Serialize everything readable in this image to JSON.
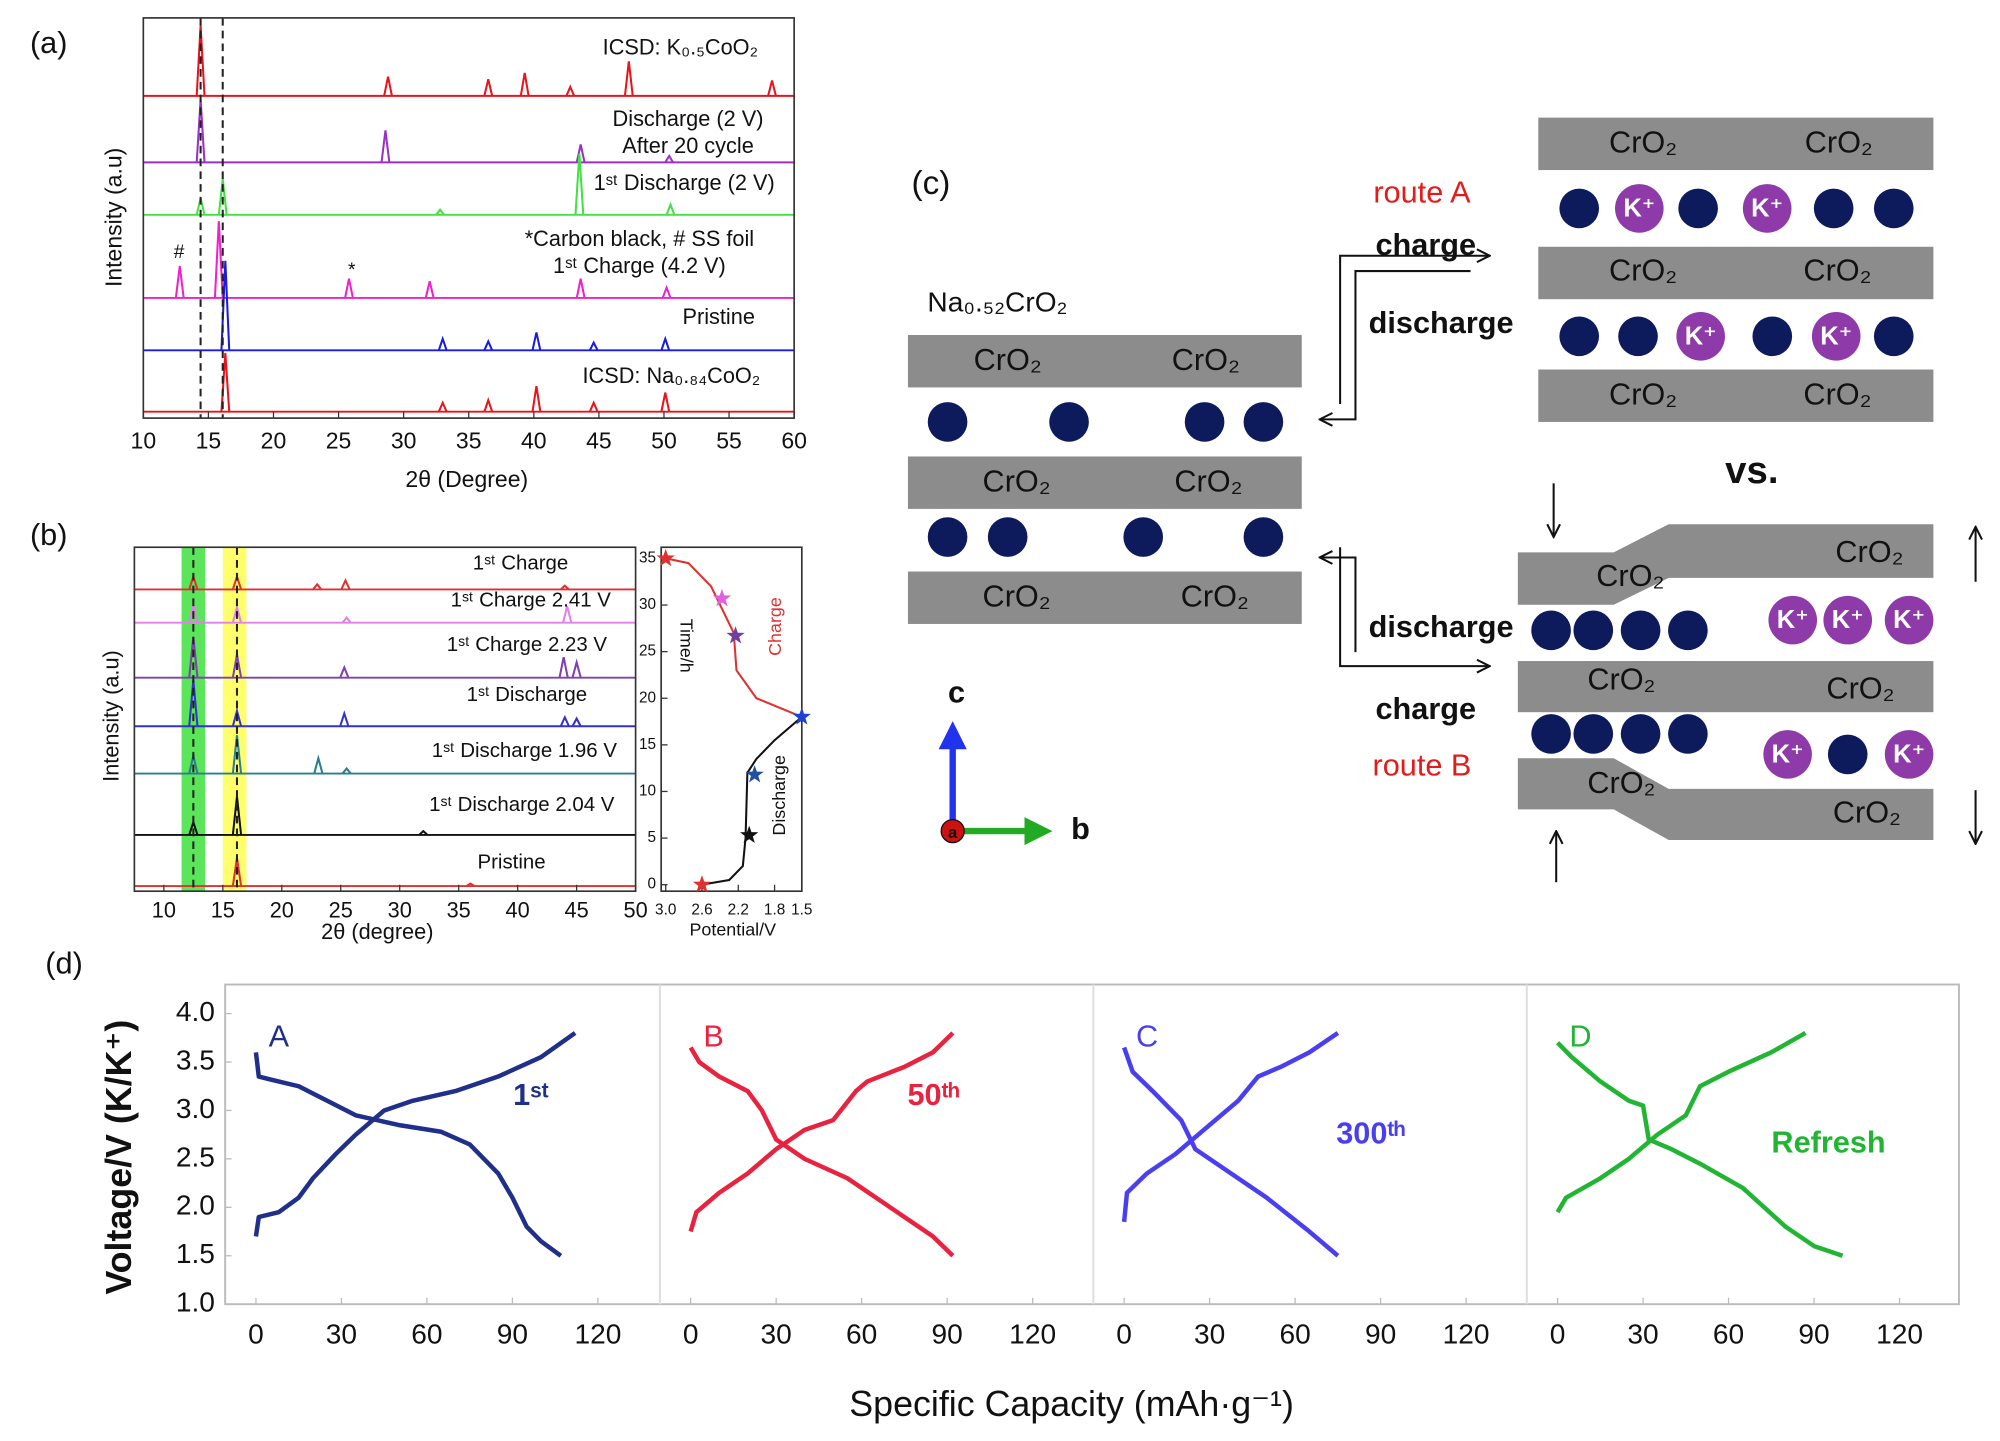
{
  "chart_data": [
    {
      "type": "line",
      "label": "(a)",
      "xlabel": "2θ (Degree)",
      "ylabel": "Intensity (a.u)",
      "xlim": [
        10,
        60
      ],
      "xticks": [
        10,
        15,
        20,
        25,
        30,
        35,
        40,
        45,
        50,
        55,
        60
      ],
      "ref_lines": [
        14.4,
        16.1
      ],
      "annotations": [
        "*Carbon black, # SS foil",
        "#",
        "*"
      ],
      "series": [
        {
          "name": "ICSD: K₀.₅CoO₂",
          "color": "#e8141c",
          "x": [
            14.4,
            28.8,
            36.5,
            39.3,
            42.8,
            47.3,
            58.3
          ],
          "values": [
            55,
            15,
            13,
            18,
            7,
            27,
            12
          ]
        },
        {
          "name": "Discharge (2 V)",
          "note": "After 20 cycle",
          "color": "#9b30c8",
          "x": [
            14.4,
            28.6,
            43.6,
            50.4
          ],
          "values": [
            49,
            25,
            14,
            5
          ]
        },
        {
          "name": "1ˢᵗ Discharge (2 V)",
          "color": "#44e044",
          "x": [
            14.4,
            16.1,
            32.8,
            43.5,
            50.5
          ],
          "values": [
            13,
            28,
            4,
            48,
            8
          ]
        },
        {
          "name": "1ˢᵗ Charge (4.2 V)",
          "color": "#ee22cc",
          "x": [
            12.8,
            15.8,
            25.8,
            32.0,
            43.6,
            50.2
          ],
          "values": [
            25,
            60,
            15,
            13,
            15,
            8
          ]
        },
        {
          "name": "Pristine",
          "color": "#1a1ae0",
          "x": [
            16.3,
            33.0,
            36.5,
            40.2,
            44.6,
            50.1
          ],
          "values": [
            70,
            9,
            7,
            14,
            6,
            9
          ]
        },
        {
          "name": "ICSD: Na₀.₈₄CoO₂",
          "color": "#e8141c",
          "x": [
            16.3,
            33.0,
            36.5,
            40.2,
            44.6,
            50.1
          ],
          "values": [
            46,
            7,
            9,
            20,
            7,
            15
          ]
        }
      ]
    },
    {
      "type": "line",
      "label": "(b)",
      "xlabel": "2θ (degree)",
      "ylabel": "Intensity (a.u)",
      "xlim": [
        7.5,
        50
      ],
      "xticks": [
        10,
        15,
        20,
        25,
        30,
        35,
        40,
        45,
        50
      ],
      "ref_lines": [
        12.5,
        16.2
      ],
      "bands": [
        {
          "range": [
            11.5,
            13.5
          ],
          "color": "#3ee03e"
        },
        {
          "range": [
            15,
            17
          ],
          "color": "#ffff55"
        }
      ],
      "series": [
        {
          "name": "1ˢᵗ Charge",
          "color": "#e03030",
          "x": [
            12.5,
            16.2,
            23.0,
            25.4,
            44
          ],
          "values": [
            10,
            10,
            4,
            7,
            3
          ]
        },
        {
          "name": "1ˢᵗ Charge 2.41 V",
          "color": "#e080e8",
          "x": [
            12.5,
            16.2,
            25.5,
            44.2
          ],
          "values": [
            14,
            12,
            4,
            13
          ]
        },
        {
          "name": "1ˢᵗ Charge 2.23 V",
          "color": "#8040b0",
          "x": [
            12.5,
            16.2,
            25.3,
            43.9,
            45
          ],
          "values": [
            32,
            18,
            8,
            16,
            12
          ]
        },
        {
          "name": "1ˢᵗ Discharge",
          "color": "#3333cc",
          "x": [
            12.5,
            16.2,
            25.3,
            44,
            45
          ],
          "values": [
            36,
            12,
            10,
            7,
            6
          ]
        },
        {
          "name": "1ˢᵗ Discharge 1.96 V",
          "color": "#2a7f8f",
          "x": [
            12.5,
            16.2,
            23.1,
            25.5
          ],
          "values": [
            14,
            30,
            12,
            4
          ]
        },
        {
          "name": "1ˢᵗ Discharge 2.04 V",
          "color": "#111111",
          "x": [
            12.5,
            16.2,
            32
          ],
          "values": [
            10,
            30,
            3
          ]
        },
        {
          "name": "Pristine",
          "color": "#e03030",
          "x": [
            16.2,
            36
          ],
          "values": [
            22,
            2
          ]
        }
      ]
    },
    {
      "type": "line",
      "xlabel": "Potential/V",
      "ylabel": "Time/h",
      "xlim": [
        3.05,
        1.5
      ],
      "xticks": [
        {
          "value": 3,
          "label": "3.0"
        },
        2.6,
        2.2,
        1.8,
        1.5
      ],
      "ylim": [
        -0.7,
        36.2
      ],
      "yticks": [
        0,
        5,
        10,
        15,
        20,
        25,
        30,
        35
      ],
      "series": [
        {
          "name": "Charge",
          "color": "#e03030",
          "x": [
            3.0,
            2.75,
            2.5,
            2.35,
            2.25,
            2.22,
            2.0,
            1.75,
            1.5
          ],
          "values": [
            35,
            34.5,
            32,
            29,
            27,
            23,
            20,
            19,
            18
          ]
        },
        {
          "name": "Discharge",
          "color": "#111111",
          "x": [
            2.6,
            2.3,
            2.15,
            2.12,
            2.1,
            2.0,
            1.8,
            1.5
          ],
          "values": [
            0,
            0.5,
            2,
            5,
            12,
            13.5,
            15.5,
            18
          ]
        }
      ],
      "markers": {
        "x": [
          3.0,
          2.38,
          2.23,
          1.5,
          2.02,
          2.08,
          2.6
        ],
        "values": [
          35,
          30.7,
          26.7,
          18,
          11.8,
          5.3,
          0
        ],
        "colors": [
          "#e03030",
          "#e060e0",
          "#7040a0",
          "#2040d0",
          "#2050a0",
          "#111111",
          "#e03030"
        ]
      }
    },
    {
      "type": "line",
      "label": "(d)",
      "tag": "A",
      "annotation": "1ˢᵗ",
      "color": "#1f2f8a",
      "ylabel": "Voltage/V (K/K⁺)",
      "xlabel": "Specific Capacity (mAh·g⁻¹)",
      "xlim": [
        -10.8,
        141.3
      ],
      "xticks": [
        0,
        30,
        60,
        90,
        120
      ],
      "ylim": [
        1,
        4.3
      ],
      "yticks": [
        {
          "value": 1,
          "label": "1.0"
        },
        1.5,
        {
          "value": 2,
          "label": "2.0"
        },
        2.5,
        {
          "value": 3,
          "label": "3.0"
        },
        3.5,
        {
          "value": 4,
          "label": "4.0"
        }
      ],
      "series": [
        {
          "x": [
            0,
            1,
            5,
            15,
            25,
            35,
            50,
            65,
            75,
            85,
            90,
            95,
            100,
            107
          ],
          "values": [
            3.6,
            3.35,
            3.32,
            3.25,
            3.1,
            2.95,
            2.85,
            2.78,
            2.65,
            2.35,
            2.1,
            1.8,
            1.65,
            1.5
          ]
        },
        {
          "x": [
            0,
            1,
            8,
            15,
            20,
            28,
            35,
            45,
            55,
            70,
            85,
            100,
            112
          ],
          "values": [
            1.7,
            1.9,
            1.95,
            2.1,
            2.3,
            2.55,
            2.75,
            3.0,
            3.1,
            3.2,
            3.35,
            3.55,
            3.8
          ]
        }
      ]
    },
    {
      "type": "line",
      "tag": "B",
      "annotation": "50ᵗʰ",
      "color": "#e8233f",
      "xlim": [
        -10.8,
        141.3
      ],
      "xticks": [
        0,
        30,
        60,
        90,
        120
      ],
      "ylim": [
        1,
        4.3
      ],
      "series": [
        {
          "x": [
            0,
            3,
            10,
            20,
            25,
            30,
            40,
            55,
            70,
            85,
            92
          ],
          "values": [
            3.65,
            3.5,
            3.35,
            3.2,
            3.0,
            2.7,
            2.5,
            2.3,
            2.0,
            1.7,
            1.5
          ]
        },
        {
          "x": [
            0,
            2,
            10,
            20,
            30,
            40,
            50,
            58,
            62,
            75,
            85,
            92
          ],
          "values": [
            1.75,
            1.95,
            2.15,
            2.35,
            2.6,
            2.8,
            2.9,
            3.2,
            3.3,
            3.45,
            3.6,
            3.8
          ]
        }
      ]
    },
    {
      "type": "line",
      "tag": "C",
      "annotation": "300ᵗʰ",
      "color": "#4a3ff0",
      "xlim": [
        -10.8,
        141.3
      ],
      "xticks": [
        0,
        30,
        60,
        90,
        120
      ],
      "ylim": [
        1,
        4.3
      ],
      "series": [
        {
          "x": [
            0,
            3,
            10,
            20,
            25,
            35,
            50,
            65,
            75
          ],
          "values": [
            3.65,
            3.4,
            3.2,
            2.9,
            2.6,
            2.4,
            2.1,
            1.75,
            1.5
          ]
        },
        {
          "x": [
            0,
            1,
            8,
            18,
            28,
            40,
            47,
            55,
            65,
            75
          ],
          "values": [
            1.85,
            2.15,
            2.35,
            2.55,
            2.8,
            3.1,
            3.35,
            3.45,
            3.6,
            3.8
          ]
        }
      ]
    },
    {
      "type": "line",
      "tag": "D",
      "annotation": "Refresh",
      "color": "#22b534",
      "xlim": [
        -10.8,
        141.3
      ],
      "xticks": [
        0,
        30,
        60,
        90,
        120
      ],
      "ylim": [
        1,
        4.3
      ],
      "series": [
        {
          "x": [
            0,
            5,
            15,
            25,
            30,
            32,
            40,
            50,
            65,
            80,
            90,
            100
          ],
          "values": [
            3.7,
            3.55,
            3.3,
            3.1,
            3.05,
            2.7,
            2.6,
            2.45,
            2.2,
            1.8,
            1.6,
            1.5
          ]
        },
        {
          "x": [
            0,
            3,
            15,
            25,
            35,
            45,
            50,
            60,
            75,
            87
          ],
          "values": [
            1.95,
            2.1,
            2.3,
            2.5,
            2.75,
            2.95,
            3.25,
            3.4,
            3.6,
            3.8
          ]
        }
      ]
    }
  ],
  "diagram": {
    "label": "(c)",
    "compound": "Na₀.₅₂CrO₂",
    "layer_labels": [
      "CrO₂",
      "CrO₂",
      "CrO₂",
      "CrO₂",
      "CrO₂",
      "CrO₂",
      "CrO₂",
      "CrO₂",
      "CrO₂",
      "CrO₂",
      "CrO₂",
      "CrO₂",
      "CrO₂",
      "CrO₂",
      "CrO₂",
      "CrO₂",
      "CrO₂",
      "CrO₂"
    ],
    "ions": [
      "K⁺",
      "K⁺",
      "K⁺",
      "K⁺",
      "K⁺",
      "K⁺",
      "K⁺",
      "K⁺",
      "K⁺"
    ],
    "route_a": "route A",
    "route_b": "route B",
    "arrow_labels": [
      "charge",
      "discharge",
      "discharge",
      "charge"
    ],
    "vs": "vs.",
    "axes": [
      "c",
      "b",
      "a"
    ]
  }
}
